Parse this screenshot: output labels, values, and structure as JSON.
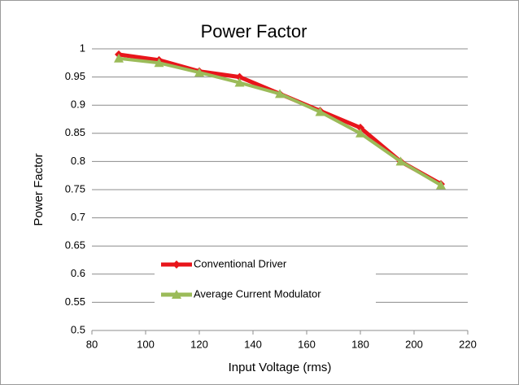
{
  "chart_data": {
    "type": "line",
    "title": "Power Factor",
    "x_label": "Input Voltage (rms)",
    "y_label": "Power Factor",
    "x": [
      90,
      105,
      120,
      135,
      150,
      165,
      180,
      195,
      210
    ],
    "series": [
      {
        "name": "Conventional Driver",
        "color": "#e8151b",
        "marker": "diamond",
        "values": [
          0.99,
          0.98,
          0.96,
          0.95,
          0.92,
          0.89,
          0.86,
          0.8,
          0.76
        ]
      },
      {
        "name": "Average Current Modulator",
        "color": "#9bbb59",
        "marker": "triangle",
        "values": [
          0.983,
          0.975,
          0.958,
          0.94,
          0.92,
          0.888,
          0.85,
          0.8,
          0.758
        ]
      }
    ],
    "xlim": [
      80,
      220
    ],
    "xticks": [
      80,
      100,
      120,
      140,
      160,
      180,
      200,
      220
    ],
    "ylim": [
      0.5,
      1
    ],
    "yticks": [
      0.5,
      0.55,
      0.6,
      0.65,
      0.7,
      0.75,
      0.8,
      0.85,
      0.9,
      0.95,
      1
    ],
    "grid": true
  }
}
